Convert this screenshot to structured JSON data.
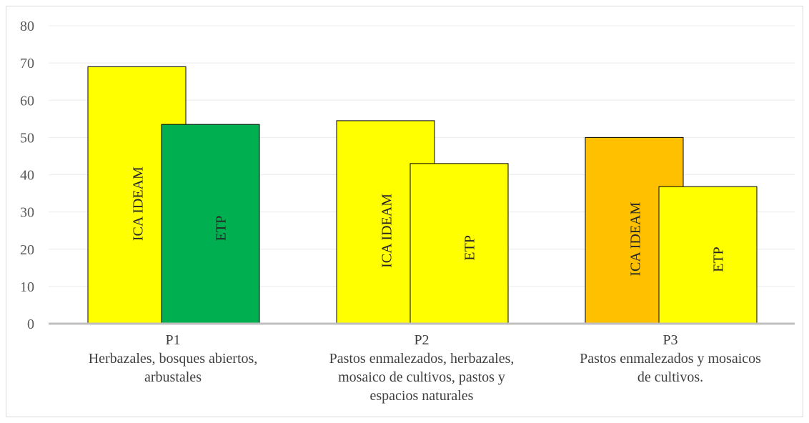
{
  "chart_data": {
    "type": "bar",
    "ylim": [
      0,
      80
    ],
    "yticks": [
      0,
      10,
      20,
      30,
      40,
      50,
      60,
      70,
      80
    ],
    "grid": true,
    "categories": [
      {
        "name": "P1",
        "lines": [
          "Herbazales, bosques abiertos,",
          "arbustales"
        ]
      },
      {
        "name": "P2",
        "lines": [
          "Pastos enmalezados, herbazales,",
          "mosaico de cultivos, pastos y",
          "espacios naturales"
        ]
      },
      {
        "name": "P3",
        "lines": [
          "Pastos enmalezados y mosaicos",
          "de cultivos."
        ]
      }
    ],
    "series": [
      {
        "name": "ICA IDEAM",
        "values": [
          69,
          54.5,
          50
        ],
        "colors": [
          "#ffff00",
          "#ffff00",
          "#ffc000"
        ]
      },
      {
        "name": "ETP",
        "values": [
          53.5,
          43,
          36.8
        ],
        "colors": [
          "#00b050",
          "#ffff00",
          "#ffff00"
        ]
      }
    ]
  }
}
